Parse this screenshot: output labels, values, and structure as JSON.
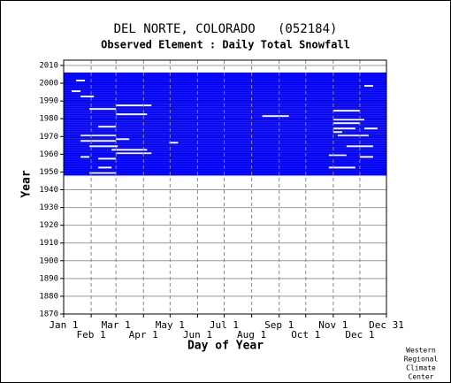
{
  "chart_data": {
    "type": "coverage",
    "title": "DEL NORTE, COLORADO   (052184)",
    "subtitle": "Observed Element : Daily Total Snowfall",
    "x_label": "Day of Year",
    "y_label": "Year",
    "credit": [
      "Western",
      "Regional",
      "Climate",
      "Center"
    ],
    "color": "#0000ff",
    "xlim": [
      1,
      365
    ],
    "xticks": [
      {
        "value": 1,
        "label": "Jan 1"
      },
      {
        "value": 32,
        "label": "Feb 1"
      },
      {
        "value": 60,
        "label": "Mar 1"
      },
      {
        "value": 91,
        "label": "Apr 1"
      },
      {
        "value": 121,
        "label": "May 1"
      },
      {
        "value": 152,
        "label": "Jun 1"
      },
      {
        "value": 182,
        "label": "Jul 1"
      },
      {
        "value": 213,
        "label": "Aug 1"
      },
      {
        "value": 244,
        "label": "Sep 1"
      },
      {
        "value": 274,
        "label": "Oct 1"
      },
      {
        "value": 305,
        "label": "Nov 1"
      },
      {
        "value": 335,
        "label": "Dec 1"
      },
      {
        "value": 365,
        "label": "Dec 31"
      }
    ],
    "ylim": [
      1870,
      2013
    ],
    "yticks": [
      1870,
      1880,
      1890,
      1900,
      1910,
      1920,
      1930,
      1940,
      1950,
      1960,
      1970,
      1980,
      1990,
      2000,
      2010
    ],
    "years": [
      1948,
      1949,
      1950,
      1951,
      1952,
      1953,
      1954,
      1955,
      1956,
      1957,
      1958,
      1959,
      1960,
      1961,
      1962,
      1963,
      1964,
      1965,
      1966,
      1967,
      1968,
      1969,
      1970,
      1971,
      1972,
      1973,
      1974,
      1975,
      1976,
      1977,
      1978,
      1979,
      1980,
      1981,
      1982,
      1983,
      1984,
      1985,
      1986,
      1987,
      1988,
      1989,
      1990,
      1991,
      1992,
      1993,
      1994,
      1995,
      1996,
      1997,
      1998,
      1999,
      2000,
      2001,
      2002,
      2003,
      2004,
      2005
    ],
    "spans": [
      [
        [
          1,
          365
        ]
      ],
      [
        [
          1,
          30
        ],
        [
          60,
          365
        ]
      ],
      [
        [
          1,
          365
        ]
      ],
      [
        [
          1,
          365
        ]
      ],
      [
        [
          1,
          40
        ],
        [
          55,
          300
        ],
        [
          330,
          365
        ]
      ],
      [
        [
          1,
          365
        ]
      ],
      [
        [
          1,
          365
        ]
      ],
      [
        [
          1,
          365
        ]
      ],
      [
        [
          1,
          365
        ]
      ],
      [
        [
          1,
          40
        ],
        [
          60,
          365
        ]
      ],
      [
        [
          1,
          20
        ],
        [
          30,
          335
        ],
        [
          350,
          365
        ]
      ],
      [
        [
          1,
          300
        ],
        [
          320,
          365
        ]
      ],
      [
        [
          1,
          60
        ],
        [
          100,
          365
        ]
      ],
      [
        [
          1,
          365
        ]
      ],
      [
        [
          1,
          55
        ],
        [
          95,
          365
        ]
      ],
      [
        [
          1,
          365
        ]
      ],
      [
        [
          1,
          30
        ],
        [
          62,
          320
        ],
        [
          350,
          365
        ]
      ],
      [
        [
          1,
          365
        ]
      ],
      [
        [
          1,
          120
        ],
        [
          130,
          365
        ]
      ],
      [
        [
          1,
          20
        ],
        [
          60,
          365
        ]
      ],
      [
        [
          1,
          60
        ],
        [
          75,
          365
        ]
      ],
      [
        [
          1,
          365
        ]
      ],
      [
        [
          1,
          20
        ],
        [
          60,
          310
        ],
        [
          345,
          365
        ]
      ],
      [
        [
          1,
          365
        ]
      ],
      [
        [
          1,
          305
        ],
        [
          315,
          365
        ]
      ],
      [
        [
          1,
          365
        ]
      ],
      [
        [
          1,
          305
        ],
        [
          330,
          340
        ],
        [
          355,
          365
        ]
      ],
      [
        [
          1,
          40
        ],
        [
          60,
          365
        ]
      ],
      [
        [
          1,
          365
        ]
      ],
      [
        [
          1,
          305
        ],
        [
          335,
          365
        ]
      ],
      [
        [
          1,
          365
        ]
      ],
      [
        [
          1,
          305
        ],
        [
          340,
          365
        ]
      ],
      [
        [
          1,
          365
        ]
      ],
      [
        [
          1,
          225
        ],
        [
          255,
          365
        ]
      ],
      [
        [
          1,
          60
        ],
        [
          95,
          365
        ]
      ],
      [
        [
          1,
          365
        ]
      ],
      [
        [
          1,
          305
        ],
        [
          335,
          365
        ]
      ],
      [
        [
          1,
          30
        ],
        [
          60,
          365
        ]
      ],
      [
        [
          1,
          365
        ]
      ],
      [
        [
          1,
          60
        ],
        [
          100,
          365
        ]
      ],
      [
        [
          1,
          365
        ]
      ],
      [
        [
          1,
          365
        ]
      ],
      [
        [
          1,
          365
        ]
      ],
      [
        [
          1,
          365
        ]
      ],
      [
        [
          1,
          20
        ],
        [
          35,
          365
        ]
      ],
      [
        [
          1,
          365
        ]
      ],
      [
        [
          1,
          365
        ]
      ],
      [
        [
          1,
          10
        ],
        [
          20,
          365
        ]
      ],
      [
        [
          1,
          365
        ]
      ],
      [
        [
          1,
          365
        ]
      ],
      [
        [
          1,
          340
        ],
        [
          350,
          365
        ]
      ],
      [
        [
          1,
          365
        ]
      ],
      [
        [
          1,
          365
        ]
      ],
      [
        [
          1,
          15
        ],
        [
          25,
          365
        ]
      ],
      [
        [
          1,
          365
        ]
      ],
      [
        [
          1,
          365
        ]
      ],
      [
        [
          1,
          365
        ]
      ],
      [
        [
          1,
          365
        ]
      ]
    ]
  }
}
